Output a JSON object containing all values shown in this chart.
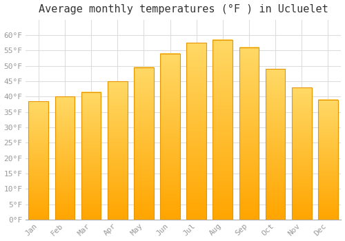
{
  "title": "Average monthly temperatures (°F ) in Ucluelet",
  "months": [
    "Jan",
    "Feb",
    "Mar",
    "Apr",
    "May",
    "Jun",
    "Jul",
    "Aug",
    "Sep",
    "Oct",
    "Nov",
    "Dec"
  ],
  "values": [
    38.5,
    40.0,
    41.5,
    45.0,
    49.5,
    54.0,
    57.5,
    58.5,
    56.0,
    49.0,
    43.0,
    39.0
  ],
  "bar_color_top": "#FFD966",
  "bar_color_bottom": "#FFA500",
  "bar_edge_color": "#E89400",
  "background_color": "#FFFFFF",
  "plot_background": "#FFFFFF",
  "ylim": [
    0,
    65
  ],
  "yticks": [
    0,
    5,
    10,
    15,
    20,
    25,
    30,
    35,
    40,
    45,
    50,
    55,
    60
  ],
  "title_fontsize": 11,
  "tick_fontsize": 8,
  "tick_color": "#999999",
  "grid_color": "#DDDDDD",
  "title_color": "#333333"
}
